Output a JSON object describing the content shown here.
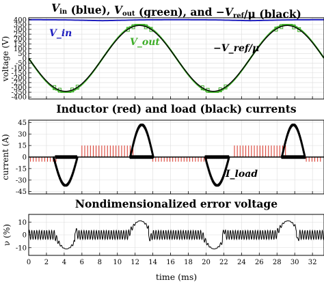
{
  "figure": {
    "panels": [
      {
        "title": "V_in (blue), V_out (green), and −V_ref/μ (black)",
        "ylabel": "voltage (V)",
        "yticks": [
          400,
          350,
          300,
          250,
          200,
          150,
          100,
          50,
          0,
          -50,
          -100,
          -150,
          -200,
          -250,
          -300,
          -350,
          -400
        ]
      },
      {
        "title": "Inductor (red) and load (black) currents",
        "ylabel": "current (A)",
        "yticks": [
          45,
          30,
          15,
          0,
          -15,
          -30,
          -45
        ]
      },
      {
        "title": "Nondimensionalized error voltage",
        "ylabel": "ν (%)",
        "yticks": [
          10,
          0,
          -10
        ]
      }
    ],
    "xticks": [
      0,
      2,
      4,
      6,
      8,
      10,
      12,
      14,
      16,
      18,
      20,
      22,
      24,
      26,
      28,
      30,
      32
    ],
    "xlabel": "time (ms)",
    "annotations": {
      "vin": "V_in",
      "vout": "V_out",
      "vref": "−V_ref/μ",
      "iload": "I_load"
    },
    "colors": {
      "vin": "#1f1fbf",
      "vout": "#3fae2a",
      "ref": "#000000",
      "inductor": "#d62d20",
      "load": "#000000"
    }
  },
  "chart_data": [
    {
      "type": "line",
      "title": "V_in (blue), V_out (green), and −V_ref/μ (black)",
      "xlabel": "",
      "ylabel": "voltage (V)",
      "xlim": [
        0,
        33.3
      ],
      "ylim": [
        -420,
        420
      ],
      "grid": true,
      "series": [
        {
          "name": "V_in",
          "x": [
            0,
            4,
            8.3,
            12.5,
            16.7,
            21,
            25,
            29.2,
            33.3
          ],
          "values": [
            400,
            398,
            390,
            398,
            400,
            398,
            390,
            398,
            400
          ]
        },
        {
          "name": "V_out",
          "x": [
            0,
            2,
            4.2,
            6.3,
            8.3,
            10.4,
            12.5,
            14.6,
            16.7,
            18.8,
            20.9,
            22.9,
            25,
            27.1,
            29.2,
            31.3,
            33.3
          ],
          "values": [
            0,
            -240,
            -350,
            -235,
            0,
            235,
            350,
            235,
            0,
            -235,
            -350,
            -235,
            0,
            235,
            350,
            235,
            0
          ]
        },
        {
          "name": "−V_ref/μ",
          "x": [
            0,
            2,
            4.2,
            6.3,
            8.3,
            10.4,
            12.5,
            14.6,
            16.7,
            18.8,
            20.9,
            22.9,
            25,
            27.1,
            29.2,
            31.3,
            33.3
          ],
          "values": [
            0,
            -240,
            -340,
            -240,
            0,
            240,
            340,
            240,
            0,
            -240,
            -340,
            -240,
            0,
            240,
            340,
            240,
            0
          ]
        }
      ]
    },
    {
      "type": "line",
      "title": "Inductor (red) and load (black) currents",
      "xlabel": "",
      "ylabel": "current (A)",
      "xlim": [
        0,
        33.3
      ],
      "ylim": [
        -48,
        48
      ],
      "grid": true,
      "series": [
        {
          "name": "Inductor",
          "x": [
            0,
            3,
            4.2,
            5.5,
            6,
            10,
            12,
            13,
            14,
            16.7,
            20,
            21,
            22.2,
            23,
            27,
            29,
            30,
            31.2,
            33.3
          ],
          "values": [
            0,
            0,
            0,
            0,
            15,
            15,
            15,
            0,
            0,
            0,
            0,
            0,
            0,
            15,
            15,
            15,
            0,
            0,
            0
          ]
        },
        {
          "name": "Load",
          "x": [
            0,
            3,
            4.2,
            5.5,
            6,
            11.5,
            13,
            14,
            16.7,
            20,
            21.3,
            22.6,
            23,
            28.5,
            30,
            31.2,
            33.3
          ],
          "values": [
            0,
            0,
            -37,
            0,
            0,
            0,
            42,
            0,
            0,
            0,
            -37,
            0,
            0,
            0,
            42,
            0,
            0
          ]
        }
      ]
    },
    {
      "type": "line",
      "title": "Nondimensionalized error voltage",
      "xlabel": "time (ms)",
      "ylabel": "ν (%)",
      "xlim": [
        0,
        33.3
      ],
      "ylim": [
        -16,
        16
      ],
      "grid": true,
      "series": [
        {
          "name": "ν",
          "x": [
            0,
            3,
            4.3,
            5.6,
            6,
            11.5,
            12.5,
            13.4,
            14,
            20,
            21.3,
            22.6,
            23,
            28.5,
            29.5,
            30.5,
            31.2,
            33.3
          ],
          "values": [
            0,
            0,
            -10,
            0,
            0,
            0,
            12,
            0,
            0,
            0,
            -10,
            0,
            0,
            0,
            12,
            0,
            0,
            0
          ]
        }
      ]
    }
  ]
}
